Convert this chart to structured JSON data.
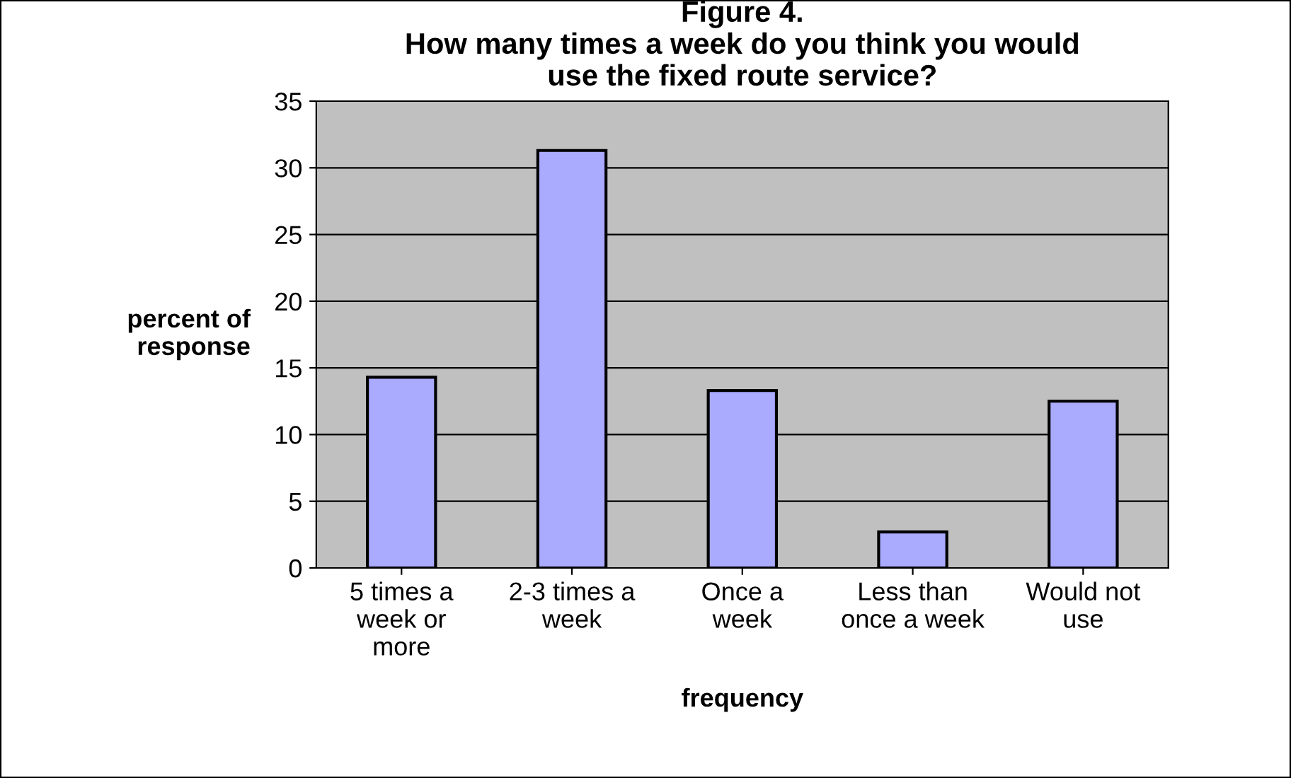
{
  "chart_data": {
    "type": "bar",
    "title": "Figure 4.\nHow many times a week do you think you would\nuse the fixed route service?",
    "xlabel": "frequency",
    "ylabel": "percent of\nresponse",
    "categories": [
      "5 times a\nweek or\nmore",
      "2-3 times a\nweek",
      "Once a\nweek",
      "Less than\nonce a week",
      "Would not\nuse"
    ],
    "values": [
      14.3,
      31.3,
      13.3,
      2.7,
      12.5
    ],
    "color": "#aaaaff",
    "ylim": [
      0,
      35
    ],
    "yticks": [
      0,
      5,
      10,
      15,
      20,
      25,
      30,
      35
    ],
    "grid": "y"
  }
}
